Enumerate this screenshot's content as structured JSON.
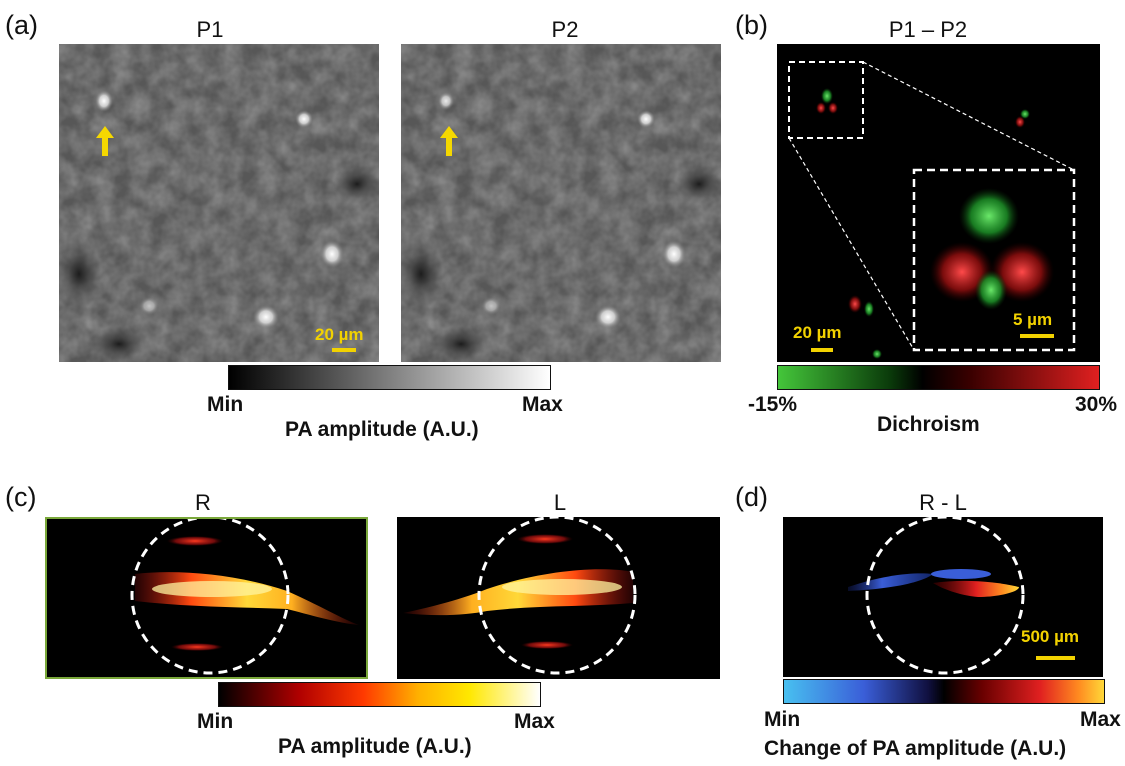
{
  "panels": {
    "a": {
      "label": "(a)",
      "left_title": "P1",
      "right_title": "P2",
      "scalebar": "20 µm",
      "colorbar": {
        "min": "Min",
        "max": "Max",
        "title": "PA amplitude (A.U.)"
      }
    },
    "b": {
      "label": "(b)",
      "title": "P1 – P2",
      "scalebar_main": "20 µm",
      "scalebar_inset": "5 µm",
      "colorbar": {
        "min": "-15%",
        "max": "30%",
        "title": "Dichroism"
      }
    },
    "c": {
      "label": "(c)",
      "left_title": "R",
      "right_title": "L",
      "colorbar": {
        "min": "Min",
        "max": "Max",
        "title": "PA amplitude (A.U.)"
      }
    },
    "d": {
      "label": "(d)",
      "title": "R - L",
      "scalebar": "500 µm",
      "colorbar": {
        "min": "Min",
        "max": "Max",
        "title": "Change of PA amplitude (A.U.)"
      }
    }
  },
  "colors": {
    "scalebar": "#f2d200",
    "arrow": "#f5d800",
    "dichroism_low": "#44c63a",
    "dichroism_high": "#e02020",
    "diff_low": "#3a5ed8",
    "frame_green": "#7aa83a"
  }
}
